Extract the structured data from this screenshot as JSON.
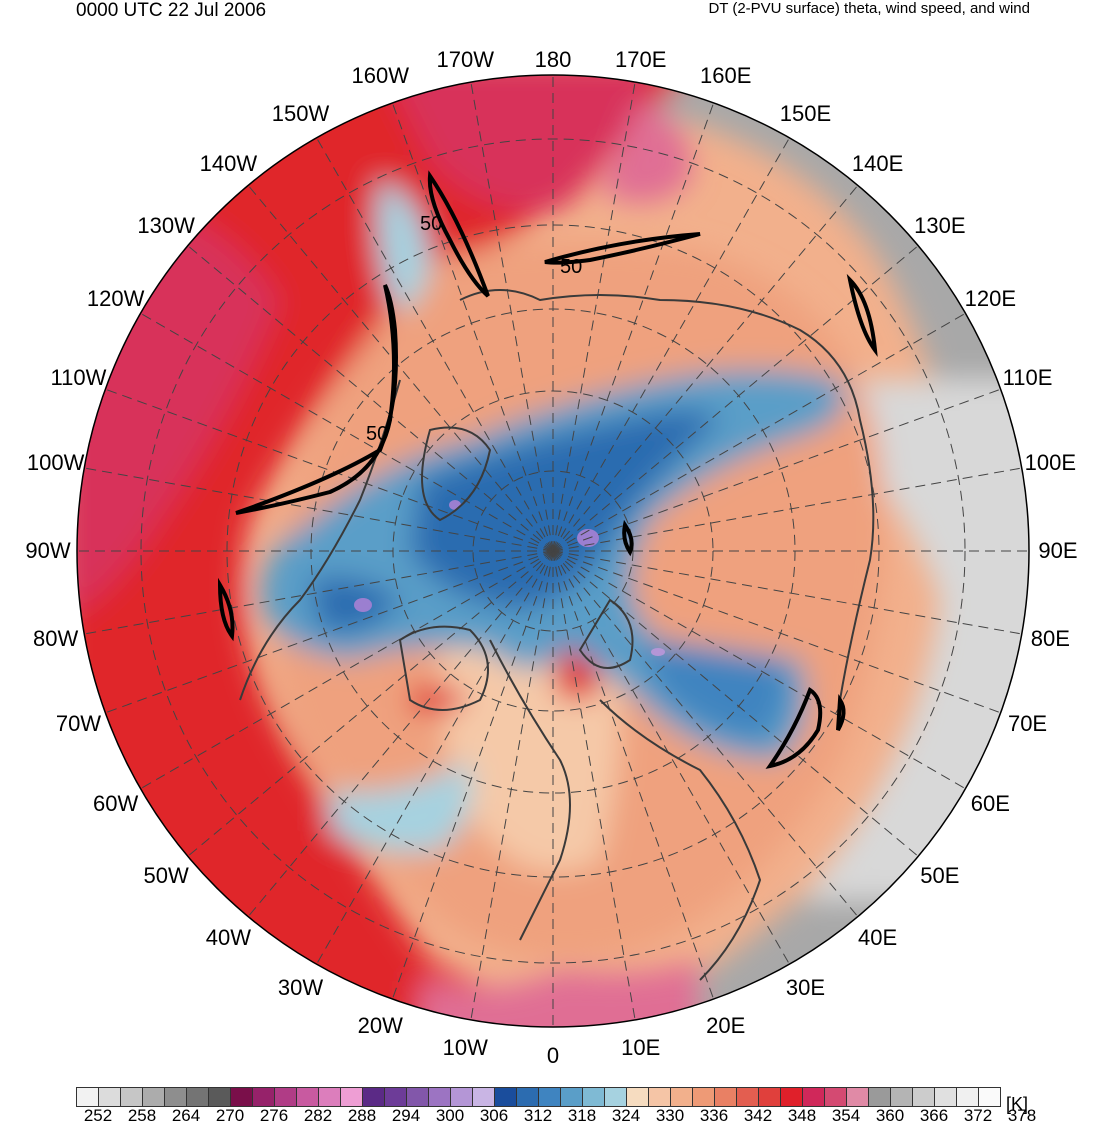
{
  "header": {
    "datetime": "0000 UTC 22 Jul 2006",
    "product": "DT (2-PVU surface) theta, wind speed, and wind"
  },
  "map": {
    "projection": "north polar stereographic",
    "longitude_labels": [
      "180",
      "170E",
      "160E",
      "150E",
      "140E",
      "130E",
      "120E",
      "110E",
      "100E",
      "90E",
      "80E",
      "70E",
      "60E",
      "50E",
      "40E",
      "30E",
      "20E",
      "10E",
      "0",
      "10W",
      "20W",
      "30W",
      "40W",
      "50W",
      "60W",
      "70W",
      "80W",
      "90W",
      "100W",
      "110W",
      "120W",
      "130W",
      "140W",
      "150W",
      "160W",
      "170W"
    ],
    "wind_speed_contour_labels": [
      "50",
      "50",
      "50"
    ],
    "colors": {
      "tropical_air": "#e8202a",
      "subtropical_air": "#d6375f",
      "midlatitude_air": "#f0a07a",
      "polar_cold_air": "#2f6bb5",
      "cold_core": "#9b7fd0",
      "stratosphere_high_theta": "#9a9a9a"
    }
  },
  "colorbar": {
    "unit": "[K]",
    "tick_labels": [
      "252",
      "258",
      "264",
      "270",
      "276",
      "282",
      "288",
      "294",
      "300",
      "306",
      "312",
      "318",
      "324",
      "330",
      "336",
      "342",
      "348",
      "354",
      "360",
      "366",
      "372",
      "378"
    ],
    "colors": [
      "#f2f2f2",
      "#dcdcdc",
      "#c6c6c6",
      "#acacac",
      "#8e8e8e",
      "#747474",
      "#5a5a5a",
      "#7a0f4a",
      "#96226a",
      "#b03c86",
      "#c85aa0",
      "#dc7ebc",
      "#ee9ed4",
      "#5b2a86",
      "#6d3c98",
      "#8257aa",
      "#9c74c2",
      "#b496d6",
      "#c9b5e4",
      "#1a4d9c",
      "#2c6cb0",
      "#3f84c0",
      "#5a9ec8",
      "#7fbad4",
      "#a6d2e0",
      "#f6dcc0",
      "#f5c5a6",
      "#f2b08c",
      "#ee9a76",
      "#e98064",
      "#e35e50",
      "#e0403c",
      "#e0202a",
      "#d0285a",
      "#d44a72",
      "#e08aa6",
      "#9a9a9a",
      "#b4b4b4",
      "#cccccc",
      "#e0e0e0",
      "#f0f0f0",
      "#fafafa"
    ]
  }
}
